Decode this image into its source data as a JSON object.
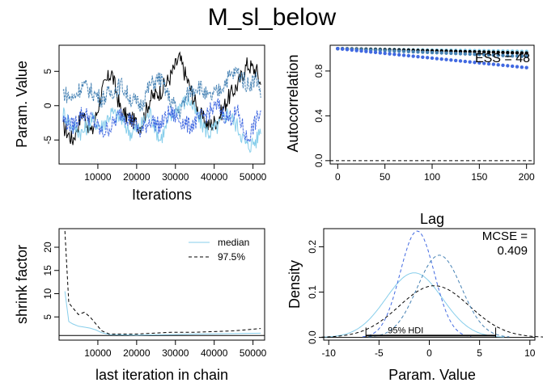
{
  "title": "M_sl_below",
  "colors": {
    "chain1": "#87CEEB",
    "chain2": "#000000",
    "chain3": "#4169E1",
    "chain4": "#4682B4"
  },
  "chart_data": [
    {
      "id": "trace",
      "type": "line",
      "xlabel": "Iterations",
      "ylabel": "Param. Value",
      "xlim": [
        0,
        53000
      ],
      "ylim": [
        -8.5,
        8.8
      ],
      "xticks": [
        10000,
        20000,
        30000,
        40000,
        50000
      ],
      "yticks": [
        -5,
        0,
        5
      ],
      "series": [
        {
          "color": "#000000",
          "style": "solid",
          "x": [
            1000,
            3500,
            6000,
            8500,
            11000,
            13500,
            16000,
            18500,
            21000,
            23500,
            26000,
            28500,
            31000,
            33500,
            36000,
            38500,
            41000,
            43500,
            46000,
            48500,
            51000,
            52000
          ],
          "y": [
            -3,
            -5,
            -1,
            -4,
            2,
            5,
            -1,
            -2,
            -3,
            1,
            2,
            4,
            7,
            3,
            -1,
            -3,
            -2,
            1,
            3,
            6,
            5,
            3
          ]
        },
        {
          "color": "#87CEEB",
          "style": "solid",
          "x": [
            1000,
            3500,
            6000,
            8500,
            11000,
            13500,
            16000,
            18500,
            21000,
            23500,
            26000,
            28500,
            31000,
            33500,
            36000,
            38500,
            41000,
            43500,
            46000,
            48500,
            51000,
            52000
          ],
          "y": [
            -1,
            -3,
            -4,
            -2,
            -3,
            -1,
            -2,
            -4,
            -3,
            -1,
            -5,
            -2,
            0,
            1,
            -2,
            -4,
            -3,
            -1,
            -3,
            -6,
            -5,
            -3
          ]
        },
        {
          "color": "#4169E1",
          "style": "dashed",
          "x": [
            1000,
            3500,
            6000,
            8500,
            11000,
            13500,
            16000,
            18500,
            21000,
            23500,
            26000,
            28500,
            31000,
            33500,
            36000,
            38500,
            41000,
            43500,
            46000,
            48500,
            51000,
            52000
          ],
          "y": [
            -2,
            -3,
            -1,
            -2,
            -4,
            -3,
            -1,
            -2,
            -4,
            -2,
            -3,
            -1,
            -2,
            -3,
            -2,
            -1,
            0,
            -2,
            -1,
            -5,
            -2,
            -1
          ]
        },
        {
          "color": "#4682B4",
          "style": "dashed",
          "x": [
            1000,
            3500,
            6000,
            8500,
            11000,
            13500,
            16000,
            18500,
            21000,
            23500,
            26000,
            28500,
            31000,
            33500,
            36000,
            38500,
            41000,
            43500,
            46000,
            48500,
            51000,
            52000
          ],
          "y": [
            2,
            1,
            3,
            2,
            1,
            2,
            3,
            1,
            0,
            3,
            4,
            1,
            -1,
            2,
            3,
            1,
            2,
            4,
            5,
            3,
            4,
            2
          ]
        }
      ]
    },
    {
      "id": "autocorrelation",
      "type": "scatter",
      "xlabel": "Lag",
      "ylabel": "Autocorrelation",
      "xlim": [
        -8,
        208
      ],
      "ylim": [
        -0.03,
        1.03
      ],
      "xticks": [
        0,
        50,
        100,
        150,
        200
      ],
      "yticks": [
        0.0,
        0.4,
        0.8
      ],
      "annotation": "ESS = 48",
      "series": [
        {
          "color": "#87CEEB",
          "lag_step": 5,
          "start": 1.0,
          "end": 0.975
        },
        {
          "color": "#000000",
          "lag_step": 5,
          "start": 1.0,
          "end": 0.96
        },
        {
          "color": "#4682B4",
          "lag_step": 5,
          "start": 1.0,
          "end": 0.93
        },
        {
          "color": "#4169E1",
          "lag_step": 5,
          "start": 1.0,
          "end": 0.83
        }
      ]
    },
    {
      "id": "shrink",
      "type": "line",
      "xlabel": "last iteration in chain",
      "ylabel": "shrink factor",
      "xlim": [
        0,
        53000
      ],
      "ylim": [
        0,
        24
      ],
      "xticks": [
        10000,
        20000,
        30000,
        40000,
        50000
      ],
      "yticks": [
        5,
        10,
        15,
        20
      ],
      "legend_position": "top-right",
      "series": [
        {
          "name": "median",
          "color": "#87CEEB",
          "style": "solid",
          "x": [
            1500,
            2500,
            3500,
            5000,
            6500,
            8000,
            9500,
            11000,
            13000,
            20000,
            29000,
            35000,
            45000,
            52000
          ],
          "y": [
            10.5,
            4,
            3.5,
            3,
            2.8,
            2.6,
            2.2,
            1.6,
            1.2,
            1.1,
            1.2,
            1.3,
            1.4,
            1.5
          ]
        },
        {
          "name": "97.5%",
          "color": "#000000",
          "style": "dashed",
          "x": [
            1500,
            2500,
            3500,
            5000,
            6500,
            8000,
            9500,
            11000,
            13000,
            20000,
            29000,
            35000,
            45000,
            52000
          ],
          "y": [
            23.5,
            8,
            7,
            5.5,
            6,
            5,
            3.5,
            2,
            1.3,
            1.3,
            1.7,
            1.7,
            2,
            2.5
          ]
        }
      ]
    },
    {
      "id": "density",
      "type": "line",
      "xlabel": "Param. Value",
      "ylabel": "Density",
      "xlim": [
        -10.5,
        10.5
      ],
      "ylim": [
        -0.006,
        0.24
      ],
      "xticks": [
        -10,
        -5,
        0,
        5,
        10
      ],
      "yticks": [
        0.0,
        0.1,
        0.2
      ],
      "annotation_lines": [
        "MCSE =",
        "0.409"
      ],
      "hdi_label": "95% HDI",
      "hdi_interval": [
        -6.3,
        6.6
      ],
      "series": [
        {
          "color": "#87CEEB",
          "style": "solid",
          "mean": -1.5,
          "sd": 2.8
        },
        {
          "color": "#000000",
          "style": "dashed",
          "mean": 0.5,
          "sd": 3.5
        },
        {
          "color": "#4169E1",
          "style": "dashed",
          "mean": -1.2,
          "sd": 1.7
        },
        {
          "color": "#4682B4",
          "style": "dashed",
          "mean": 1.0,
          "sd": 2.2
        }
      ]
    }
  ]
}
